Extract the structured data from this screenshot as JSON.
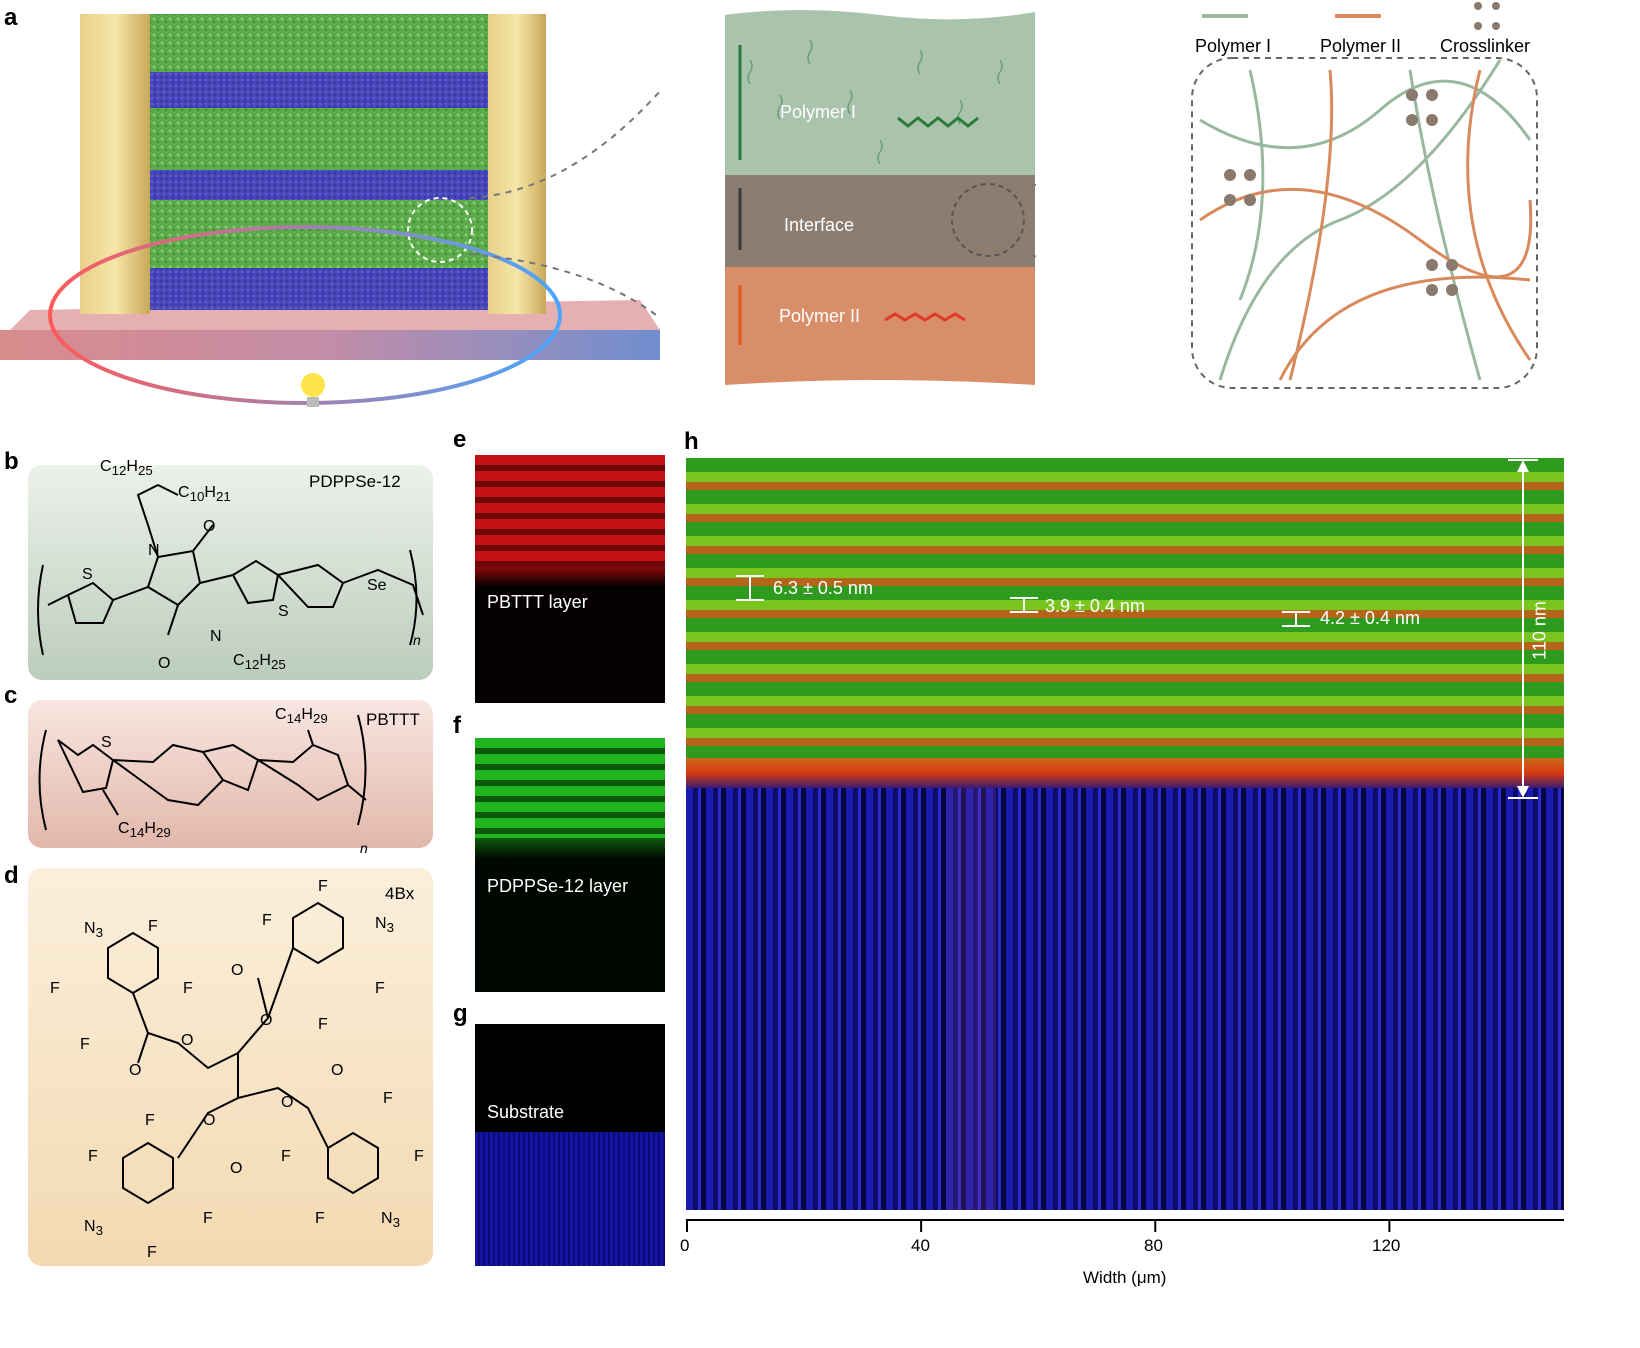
{
  "panels": {
    "a": "a",
    "b": "b",
    "c": "c",
    "d": "d",
    "e": "e",
    "f": "f",
    "g": "g",
    "h": "h"
  },
  "panel_a": {
    "middle": {
      "top_label": "Polymer I",
      "interface_label": "Interface",
      "bottom_label": "Polymer II"
    },
    "legend": {
      "polymer1": "Polymer I",
      "polymer2": "Polymer II",
      "crosslinker": "Crosslinker"
    }
  },
  "panel_b": {
    "name": "PDPPSe-12",
    "substituents": {
      "branch_top": "C",
      "branch_top_sub": "12",
      "branch_top_h": "H",
      "branch_top_hsub": "25",
      "branch_side": "C",
      "branch_side_sub": "10",
      "branch_side_h": "H",
      "branch_side_hsub": "21",
      "bottom": "C",
      "bottom_sub": "12",
      "bottom_h": "H",
      "bottom_hsub": "25"
    },
    "atoms": {
      "n1": "N",
      "n2": "N",
      "o1": "O",
      "o2": "O",
      "s1": "S",
      "s2": "S",
      "se": "Se",
      "n_index": "n"
    }
  },
  "panel_c": {
    "name": "PBTTT",
    "substituents": {
      "top": "C",
      "top_sub": "14",
      "top_h": "H",
      "top_hsub": "29",
      "bottom": "C",
      "bottom_sub": "14",
      "bottom_h": "H",
      "bottom_hsub": "29"
    },
    "atoms": {
      "s": "S",
      "n_index": "n"
    }
  },
  "panel_d": {
    "name": "4Bx",
    "atoms": {
      "n3": "N",
      "n3_sub": "3",
      "f": "F",
      "o": "O"
    }
  },
  "panel_e": {
    "label": "PBTTT layer"
  },
  "panel_f": {
    "label": "PDPPSe-12 layer"
  },
  "panel_g": {
    "label": "Substrate"
  },
  "panel_h": {
    "annotations": [
      "6.3 ± 0.5 nm",
      "3.9 ± 0.4 nm",
      "4.2 ± 0.4 nm"
    ],
    "thickness": "110 nm",
    "xaxis": {
      "label": "Width (μm)",
      "ticks": [
        "0",
        "40",
        "80",
        "120"
      ]
    }
  },
  "colors": {
    "polymer1": "#9ab8a0",
    "polymer2": "#d98a5c",
    "green_map": "#33cc33",
    "red_map": "#d91a1a",
    "blue_map": "#1a1aa8"
  },
  "chart_data": {
    "type": "heatmap",
    "xlabel": "Width (μm)",
    "xticks": [
      0,
      40,
      80,
      120
    ],
    "xlim": [
      0,
      150
    ],
    "annotations": [
      "6.3 ± 0.5 nm",
      "3.9 ± 0.4 nm",
      "4.2 ± 0.4 nm"
    ],
    "thickness_label": "110 nm"
  }
}
